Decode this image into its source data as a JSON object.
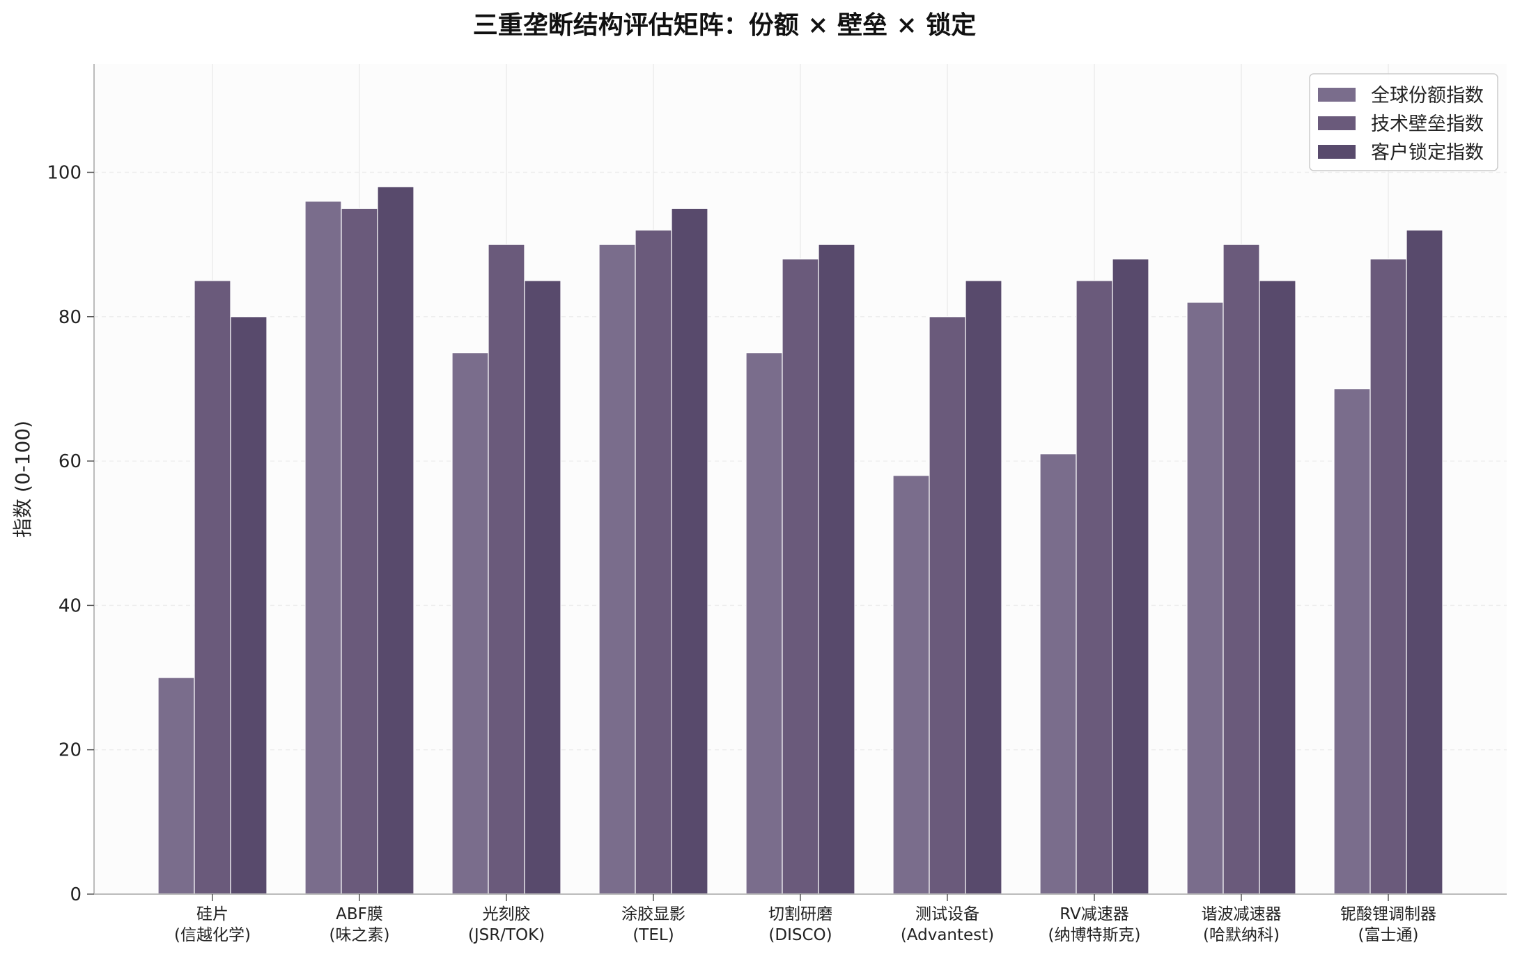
{
  "chart_data": {
    "type": "bar",
    "title": "三重垄断结构评估矩阵：份额 × 壁垒 × 锁定",
    "ylabel": "指数 (0-100)",
    "xlabel": "",
    "ylim": [
      0,
      115
    ],
    "yticks": [
      0,
      20,
      40,
      60,
      80,
      100
    ],
    "grid": true,
    "legend_position": "top-right",
    "categories": [
      [
        "硅片",
        "(信越化学)"
      ],
      [
        "ABF膜",
        "(味之素)"
      ],
      [
        "光刻胶",
        "(JSR/TOK)"
      ],
      [
        "涂胶显影",
        "(TEL)"
      ],
      [
        "切割研磨",
        "(DISCO)"
      ],
      [
        "测试设备",
        "(Advantest)"
      ],
      [
        "RV减速器",
        "(纳博特斯克)"
      ],
      [
        "谐波减速器",
        "(哈默纳科)"
      ],
      [
        "铌酸锂调制器",
        "(富士通)"
      ]
    ],
    "series": [
      {
        "name": "全球份额指数",
        "color": "#7a6d8c",
        "values": [
          30,
          96,
          75,
          90,
          75,
          58,
          61,
          82,
          70
        ]
      },
      {
        "name": "技术壁垒指数",
        "color": "#6a5a7b",
        "values": [
          85,
          95,
          90,
          92,
          88,
          80,
          85,
          90,
          88
        ]
      },
      {
        "name": "客户锁定指数",
        "color": "#584a6c",
        "values": [
          80,
          98,
          85,
          95,
          90,
          85,
          88,
          85,
          92
        ]
      }
    ]
  }
}
